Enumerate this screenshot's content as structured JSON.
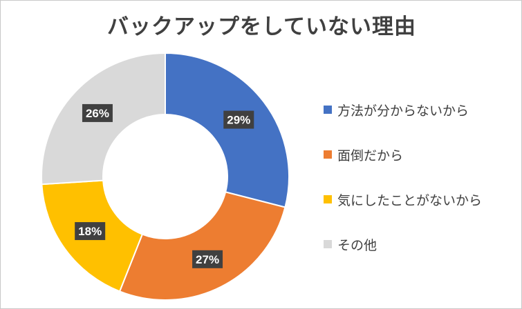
{
  "chart_data": {
    "type": "pie",
    "title": "バックアップをしていない理由",
    "categories": [
      "方法が分からないから",
      "面倒だから",
      "気にしたことがないから",
      "その他"
    ],
    "values": [
      29,
      27,
      18,
      26
    ],
    "data_labels": [
      "29%",
      "27%",
      "18%",
      "26%"
    ],
    "colors": [
      "#4472C4",
      "#ED7D31",
      "#FFC000",
      "#D9D9D9"
    ],
    "legend_position": "right",
    "donut": true
  }
}
